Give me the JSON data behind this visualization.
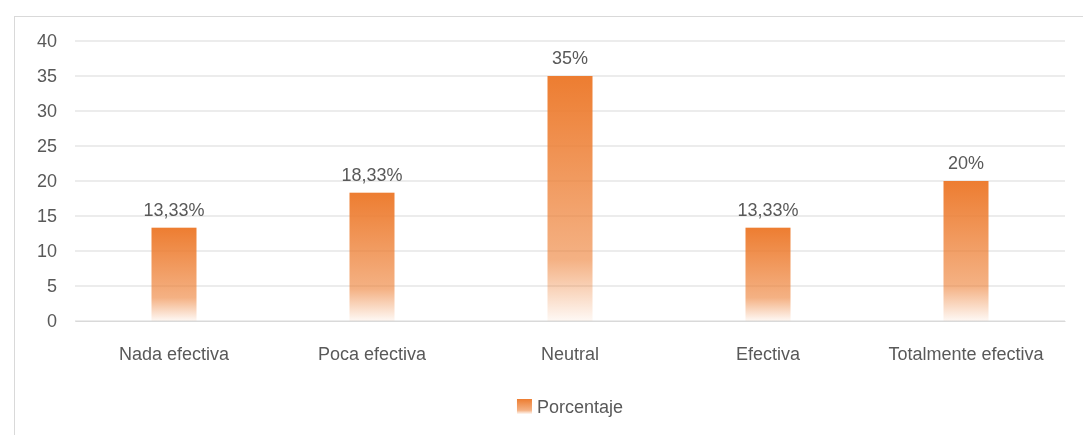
{
  "chart_data": {
    "type": "bar",
    "categories": [
      "Nada efectiva",
      "Poca efectiva",
      "Neutral",
      "Efectiva",
      "Totalmente efectiva"
    ],
    "series": [
      {
        "name": "Porcentaje",
        "color": "#ed7d31",
        "values": [
          13.33,
          18.33,
          35,
          13.33,
          20
        ],
        "value_labels": [
          "13,33%",
          "18,33%",
          "35%",
          "13,33%",
          "20%"
        ]
      }
    ],
    "ylim": [
      0,
      40
    ],
    "yticks": [
      0,
      5,
      10,
      15,
      20,
      25,
      30,
      35,
      40
    ],
    "grid": "y",
    "legend": "bottom"
  }
}
